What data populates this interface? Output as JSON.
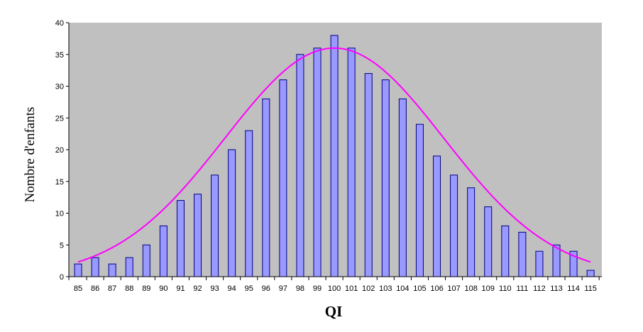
{
  "chart_data": {
    "type": "bar",
    "title": "",
    "xlabel": "QI",
    "ylabel": "Nombre d'enfants",
    "categories": [
      "85",
      "86",
      "87",
      "88",
      "89",
      "90",
      "91",
      "92",
      "93",
      "94",
      "95",
      "96",
      "97",
      "98",
      "99",
      "100",
      "101",
      "102",
      "103",
      "104",
      "105",
      "106",
      "107",
      "108",
      "109",
      "110",
      "111",
      "112",
      "113",
      "114",
      "115"
    ],
    "series": [
      {
        "values": [
          2,
          3,
          2,
          3,
          5,
          8,
          12,
          13,
          16,
          20,
          23,
          28,
          31,
          35,
          36,
          38,
          36,
          32,
          31,
          28,
          24,
          19,
          16,
          14,
          11,
          8,
          7,
          4,
          5,
          4,
          1
        ]
      }
    ],
    "fit_curve": {
      "type": "normal",
      "mean": 100,
      "peak": 36,
      "sd": 6.4
    },
    "ylim": [
      0,
      40
    ],
    "y_ticks": [
      0,
      5,
      10,
      15,
      20,
      25,
      30,
      35,
      40
    ],
    "grid": false,
    "legend": "none",
    "colors": {
      "plot_background": "#c0c0c0",
      "bar_fill": "#9999ff",
      "bar_stroke": "#000080",
      "curve": "#ff00ff",
      "axis": "#000000"
    }
  }
}
